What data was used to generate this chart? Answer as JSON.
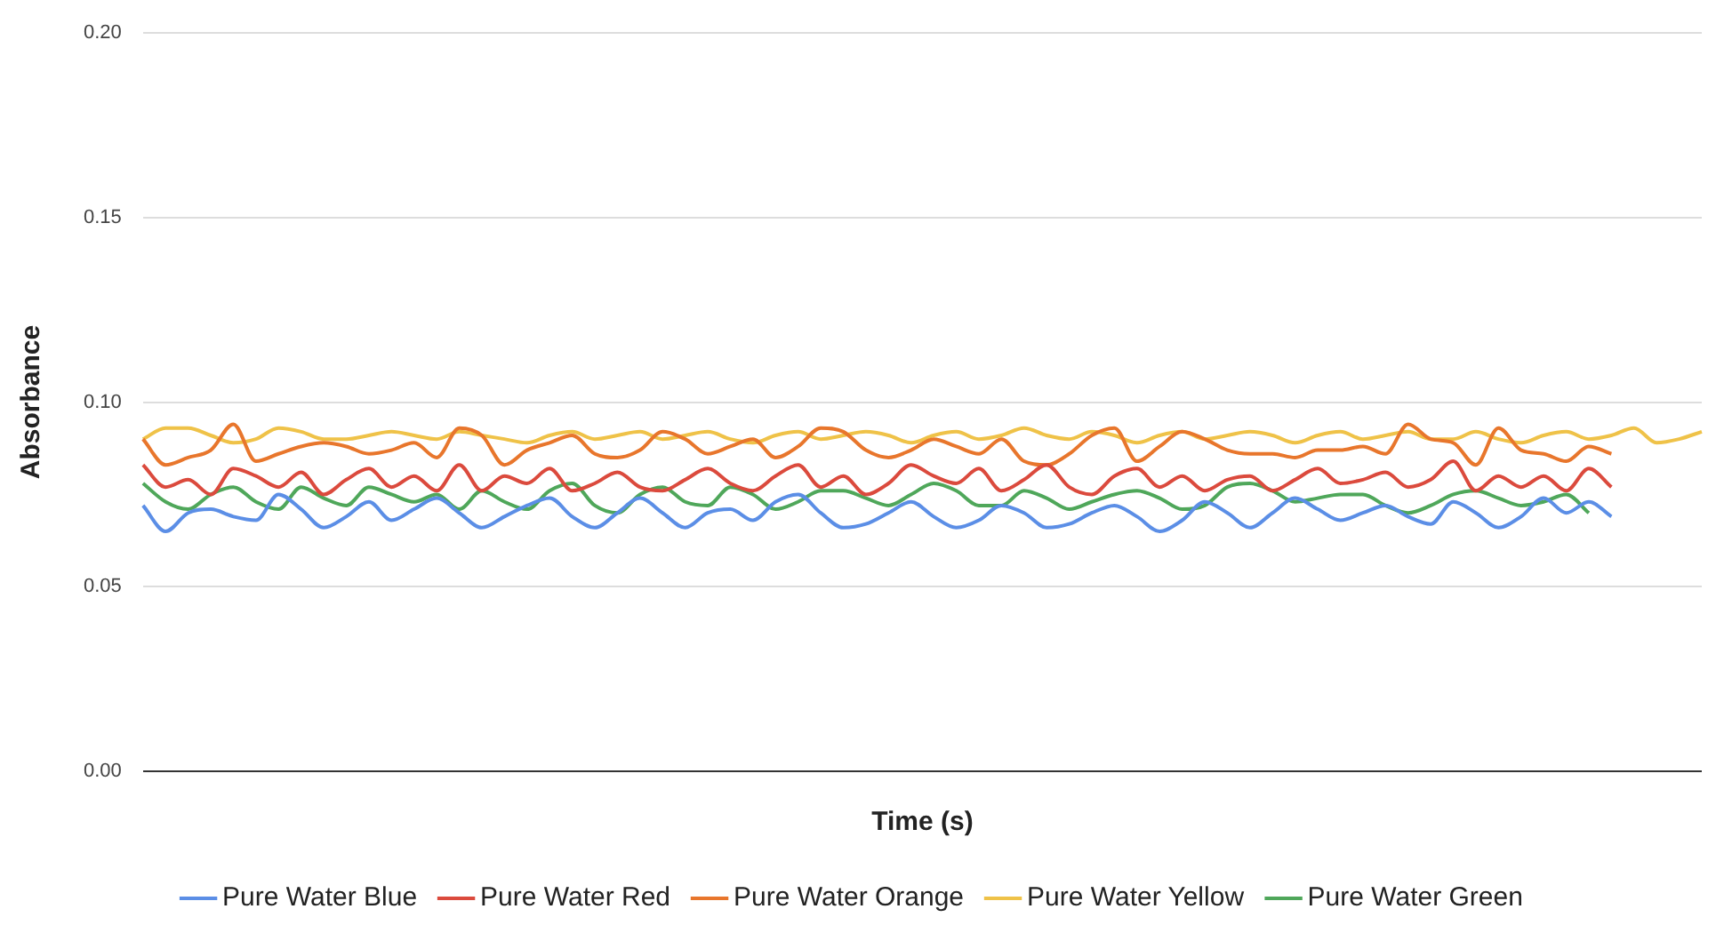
{
  "chart_data": {
    "type": "line",
    "xlabel": "Time (s)",
    "ylabel": "Absorbance",
    "ylim": [
      0,
      0.2
    ],
    "yticks": [
      {
        "value": 0,
        "label": "0.00"
      },
      {
        "value": 0.05,
        "label": "0.05"
      },
      {
        "value": 0.1,
        "label": "0.10"
      },
      {
        "value": 0.15,
        "label": "0.15"
      },
      {
        "value": 0.2,
        "label": "0.20"
      }
    ],
    "grid": "y",
    "legend": "bottom",
    "marker": "none",
    "line_style": "solid",
    "categories": [
      null,
      null,
      null,
      null,
      null,
      null,
      null,
      null,
      null,
      null,
      null,
      null,
      null,
      null,
      null,
      null,
      null,
      null,
      null,
      null,
      null,
      null,
      null,
      null,
      null,
      null,
      null,
      null,
      null,
      null,
      null,
      null,
      null,
      null,
      null,
      null,
      null,
      null,
      null,
      null,
      null,
      null,
      null,
      null,
      null,
      null,
      null,
      null,
      null,
      null,
      null,
      null,
      null,
      null,
      null,
      null,
      null,
      null,
      null,
      null,
      null,
      null,
      null,
      null,
      null,
      null,
      null,
      null,
      null,
      null
    ],
    "series": [
      {
        "name": "Pure Water Blue",
        "color": "#5b8ee6",
        "values": [
          0.072,
          0.065,
          0.07,
          0.071,
          0.069,
          0.068,
          0.075,
          0.071,
          0.066,
          0.069,
          0.073,
          0.068,
          0.071,
          0.074,
          0.07,
          0.066,
          0.069,
          0.072,
          0.074,
          0.069,
          0.066,
          0.07,
          0.074,
          0.07,
          0.066,
          0.07,
          0.071,
          0.068,
          0.073,
          0.075,
          0.07,
          0.066,
          0.067,
          0.07,
          0.073,
          0.069,
          0.066,
          0.068,
          0.072,
          0.07,
          0.066,
          0.067,
          0.07,
          0.072,
          0.069,
          0.065,
          0.068,
          0.073,
          0.07,
          0.066,
          0.07,
          0.074,
          0.071,
          0.068,
          0.07,
          0.072,
          0.069,
          0.067,
          0.073,
          0.07,
          0.066,
          0.069,
          0.074,
          0.07,
          0.073,
          0.069,
          null,
          null,
          null,
          null
        ]
      },
      {
        "name": "Pure Water Red",
        "color": "#db4a3d",
        "values": [
          0.083,
          0.077,
          0.079,
          0.075,
          0.082,
          0.08,
          0.077,
          0.081,
          0.075,
          0.079,
          0.082,
          0.077,
          0.08,
          0.076,
          0.083,
          0.076,
          0.08,
          0.078,
          0.082,
          0.076,
          0.078,
          0.081,
          0.077,
          0.076,
          0.079,
          0.082,
          0.078,
          0.076,
          0.08,
          0.083,
          0.077,
          0.08,
          0.075,
          0.078,
          0.083,
          0.08,
          0.078,
          0.082,
          0.076,
          0.079,
          0.083,
          0.077,
          0.075,
          0.08,
          0.082,
          0.077,
          0.08,
          0.076,
          0.079,
          0.08,
          0.076,
          0.079,
          0.082,
          0.078,
          0.079,
          0.081,
          0.077,
          0.079,
          0.084,
          0.076,
          0.08,
          0.077,
          0.08,
          0.076,
          0.082,
          0.077,
          null,
          null,
          null,
          null
        ]
      },
      {
        "name": "Pure Water Orange",
        "color": "#e8762c",
        "values": [
          0.09,
          0.083,
          0.085,
          0.087,
          0.094,
          0.084,
          0.086,
          0.088,
          0.089,
          0.088,
          0.086,
          0.087,
          0.089,
          0.085,
          0.093,
          0.091,
          0.083,
          0.087,
          0.089,
          0.091,
          0.086,
          0.085,
          0.087,
          0.092,
          0.09,
          0.086,
          0.088,
          0.09,
          0.085,
          0.088,
          0.093,
          0.092,
          0.087,
          0.085,
          0.087,
          0.09,
          0.088,
          0.086,
          0.09,
          0.084,
          0.083,
          0.086,
          0.091,
          0.093,
          0.084,
          0.088,
          0.092,
          0.09,
          0.087,
          0.086,
          0.086,
          0.085,
          0.087,
          0.087,
          0.088,
          0.086,
          0.094,
          0.09,
          0.089,
          0.083,
          0.093,
          0.087,
          0.086,
          0.084,
          0.088,
          0.086,
          null,
          null,
          null,
          null
        ]
      },
      {
        "name": "Pure Water Yellow",
        "color": "#efc248",
        "values": [
          0.09,
          0.093,
          0.093,
          0.091,
          0.089,
          0.09,
          0.093,
          0.092,
          0.09,
          0.09,
          0.091,
          0.092,
          0.091,
          0.09,
          0.092,
          0.091,
          0.09,
          0.089,
          0.091,
          0.092,
          0.09,
          0.091,
          0.092,
          0.09,
          0.091,
          0.092,
          0.09,
          0.089,
          0.091,
          0.092,
          0.09,
          0.091,
          0.092,
          0.091,
          0.089,
          0.091,
          0.092,
          0.09,
          0.091,
          0.093,
          0.091,
          0.09,
          0.092,
          0.091,
          0.089,
          0.091,
          0.092,
          0.09,
          0.091,
          0.092,
          0.091,
          0.089,
          0.091,
          0.092,
          0.09,
          0.091,
          0.092,
          0.09,
          0.09,
          0.092,
          0.09,
          0.089,
          0.091,
          0.092,
          0.09,
          0.091,
          0.093,
          0.089,
          0.09,
          0.092
        ]
      },
      {
        "name": "Pure Water Green",
        "color": "#4fa75a",
        "values": [
          0.078,
          0.073,
          0.071,
          0.075,
          0.077,
          0.073,
          0.071,
          0.077,
          0.074,
          0.072,
          0.077,
          0.075,
          0.073,
          0.075,
          0.071,
          0.076,
          0.073,
          0.071,
          0.076,
          0.078,
          0.072,
          0.07,
          0.075,
          0.077,
          0.073,
          0.072,
          0.077,
          0.075,
          0.071,
          0.073,
          0.076,
          0.076,
          0.074,
          0.072,
          0.075,
          0.078,
          0.076,
          0.072,
          0.072,
          0.076,
          0.074,
          0.071,
          0.073,
          0.075,
          0.076,
          0.074,
          0.071,
          0.072,
          0.077,
          0.078,
          0.076,
          0.073,
          0.074,
          0.075,
          0.075,
          0.072,
          0.07,
          0.072,
          0.075,
          0.076,
          0.074,
          0.072,
          0.073,
          0.075,
          0.07,
          null,
          null,
          null,
          null,
          null
        ]
      }
    ]
  }
}
